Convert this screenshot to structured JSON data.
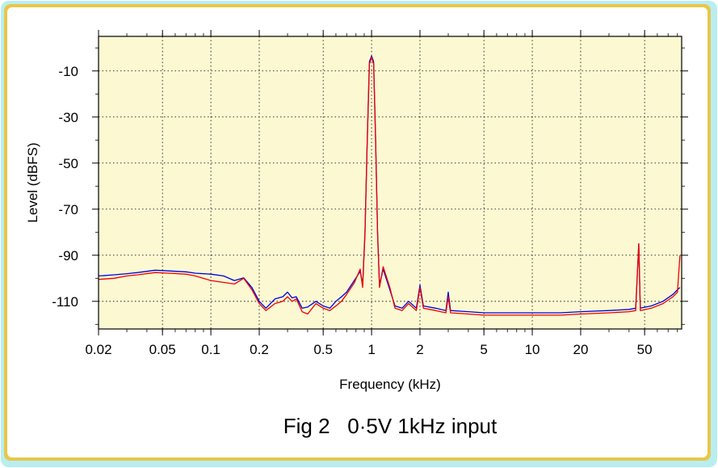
{
  "chart_data": {
    "type": "line",
    "title": "",
    "caption": "Fig 2   0·5V 1kHz input",
    "xlabel": "Frequency (kHz)",
    "ylabel": "Level (dBFS)",
    "xscale": "log",
    "xlim": [
      0.02,
      85
    ],
    "ylim": [
      -122,
      5
    ],
    "grid": true,
    "legend": "none",
    "x_ticks": [
      {
        "value": 0.02,
        "label": "0.02"
      },
      {
        "value": 0.05,
        "label": "0.05"
      },
      {
        "value": 0.1,
        "label": "0.1"
      },
      {
        "value": 0.2,
        "label": "0.2"
      },
      {
        "value": 0.5,
        "label": "0.5"
      },
      {
        "value": 1,
        "label": "1"
      },
      {
        "value": 2,
        "label": "2"
      },
      {
        "value": 5,
        "label": "5"
      },
      {
        "value": 10,
        "label": "10"
      },
      {
        "value": 20,
        "label": "20"
      },
      {
        "value": 50,
        "label": "50"
      }
    ],
    "y_ticks": [
      {
        "value": -10,
        "label": "-10"
      },
      {
        "value": -30,
        "label": "-30"
      },
      {
        "value": -50,
        "label": "-50"
      },
      {
        "value": -70,
        "label": "-70"
      },
      {
        "value": -90,
        "label": "-90"
      },
      {
        "value": -110,
        "label": "-110"
      }
    ],
    "series": [
      {
        "color": "#0000dd",
        "points": [
          [
            0.02,
            -99
          ],
          [
            0.025,
            -98.5
          ],
          [
            0.03,
            -98
          ],
          [
            0.035,
            -97.5
          ],
          [
            0.045,
            -96.5
          ],
          [
            0.055,
            -96.8
          ],
          [
            0.07,
            -97.2
          ],
          [
            0.08,
            -97.8
          ],
          [
            0.1,
            -98.2
          ],
          [
            0.12,
            -99
          ],
          [
            0.14,
            -101
          ],
          [
            0.16,
            -99.8
          ],
          [
            0.18,
            -104
          ],
          [
            0.2,
            -110
          ],
          [
            0.22,
            -113
          ],
          [
            0.25,
            -109
          ],
          [
            0.28,
            -108
          ],
          [
            0.3,
            -106
          ],
          [
            0.32,
            -108.5
          ],
          [
            0.34,
            -108
          ],
          [
            0.37,
            -113
          ],
          [
            0.4,
            -112.5
          ],
          [
            0.45,
            -110
          ],
          [
            0.5,
            -112
          ],
          [
            0.55,
            -113
          ],
          [
            0.6,
            -110
          ],
          [
            0.65,
            -108
          ],
          [
            0.7,
            -106
          ],
          [
            0.78,
            -101
          ],
          [
            0.85,
            -97
          ],
          [
            0.88,
            -103
          ],
          [
            0.91,
            -80
          ],
          [
            0.94,
            -40
          ],
          [
            0.97,
            -6
          ],
          [
            1.0,
            -3.5
          ],
          [
            1.03,
            -6
          ],
          [
            1.06,
            -40
          ],
          [
            1.09,
            -80
          ],
          [
            1.12,
            -103
          ],
          [
            1.18,
            -96
          ],
          [
            1.3,
            -105
          ],
          [
            1.4,
            -112
          ],
          [
            1.55,
            -113
          ],
          [
            1.7,
            -110
          ],
          [
            1.9,
            -113
          ],
          [
            2.0,
            -103
          ],
          [
            2.1,
            -112
          ],
          [
            2.5,
            -113
          ],
          [
            2.9,
            -114
          ],
          [
            3.0,
            -106
          ],
          [
            3.1,
            -114
          ],
          [
            4,
            -114.5
          ],
          [
            5,
            -115
          ],
          [
            7,
            -115
          ],
          [
            10,
            -115
          ],
          [
            15,
            -115
          ],
          [
            20,
            -114.5
          ],
          [
            30,
            -114
          ],
          [
            40,
            -113.5
          ],
          [
            44,
            -113
          ],
          [
            46,
            -85
          ],
          [
            47,
            -113
          ],
          [
            55,
            -112
          ],
          [
            65,
            -110
          ],
          [
            75,
            -107
          ],
          [
            80,
            -105
          ],
          [
            83,
            -104
          ]
        ]
      },
      {
        "color": "#ee0000",
        "points": [
          [
            0.02,
            -100.5
          ],
          [
            0.025,
            -100
          ],
          [
            0.03,
            -99
          ],
          [
            0.035,
            -98.5
          ],
          [
            0.045,
            -97.5
          ],
          [
            0.055,
            -97.8
          ],
          [
            0.07,
            -98.2
          ],
          [
            0.08,
            -99
          ],
          [
            0.1,
            -101
          ],
          [
            0.12,
            -101.8
          ],
          [
            0.14,
            -102.5
          ],
          [
            0.16,
            -100
          ],
          [
            0.18,
            -105
          ],
          [
            0.2,
            -111
          ],
          [
            0.22,
            -114
          ],
          [
            0.25,
            -111
          ],
          [
            0.28,
            -110
          ],
          [
            0.3,
            -108
          ],
          [
            0.32,
            -110
          ],
          [
            0.34,
            -109
          ],
          [
            0.37,
            -114.5
          ],
          [
            0.4,
            -115.5
          ],
          [
            0.45,
            -111
          ],
          [
            0.5,
            -113
          ],
          [
            0.55,
            -114
          ],
          [
            0.6,
            -112
          ],
          [
            0.65,
            -110
          ],
          [
            0.7,
            -107
          ],
          [
            0.78,
            -102
          ],
          [
            0.85,
            -96
          ],
          [
            0.88,
            -104
          ],
          [
            0.91,
            -81
          ],
          [
            0.94,
            -41
          ],
          [
            0.97,
            -7
          ],
          [
            1.0,
            -4
          ],
          [
            1.03,
            -7
          ],
          [
            1.06,
            -41
          ],
          [
            1.09,
            -81
          ],
          [
            1.12,
            -104
          ],
          [
            1.18,
            -95
          ],
          [
            1.3,
            -104
          ],
          [
            1.4,
            -113
          ],
          [
            1.55,
            -114
          ],
          [
            1.7,
            -111
          ],
          [
            1.9,
            -114
          ],
          [
            2.0,
            -104
          ],
          [
            2.1,
            -113
          ],
          [
            2.5,
            -114
          ],
          [
            2.9,
            -115
          ],
          [
            3.0,
            -108
          ],
          [
            3.1,
            -115
          ],
          [
            4,
            -115.5
          ],
          [
            5,
            -116
          ],
          [
            7,
            -116
          ],
          [
            10,
            -116
          ],
          [
            15,
            -116
          ],
          [
            20,
            -115.5
          ],
          [
            30,
            -115
          ],
          [
            40,
            -114.5
          ],
          [
            44,
            -114
          ],
          [
            46,
            -85
          ],
          [
            47,
            -114
          ],
          [
            55,
            -113
          ],
          [
            65,
            -111
          ],
          [
            75,
            -108
          ],
          [
            80,
            -106
          ],
          [
            83,
            -90
          ]
        ]
      }
    ]
  }
}
